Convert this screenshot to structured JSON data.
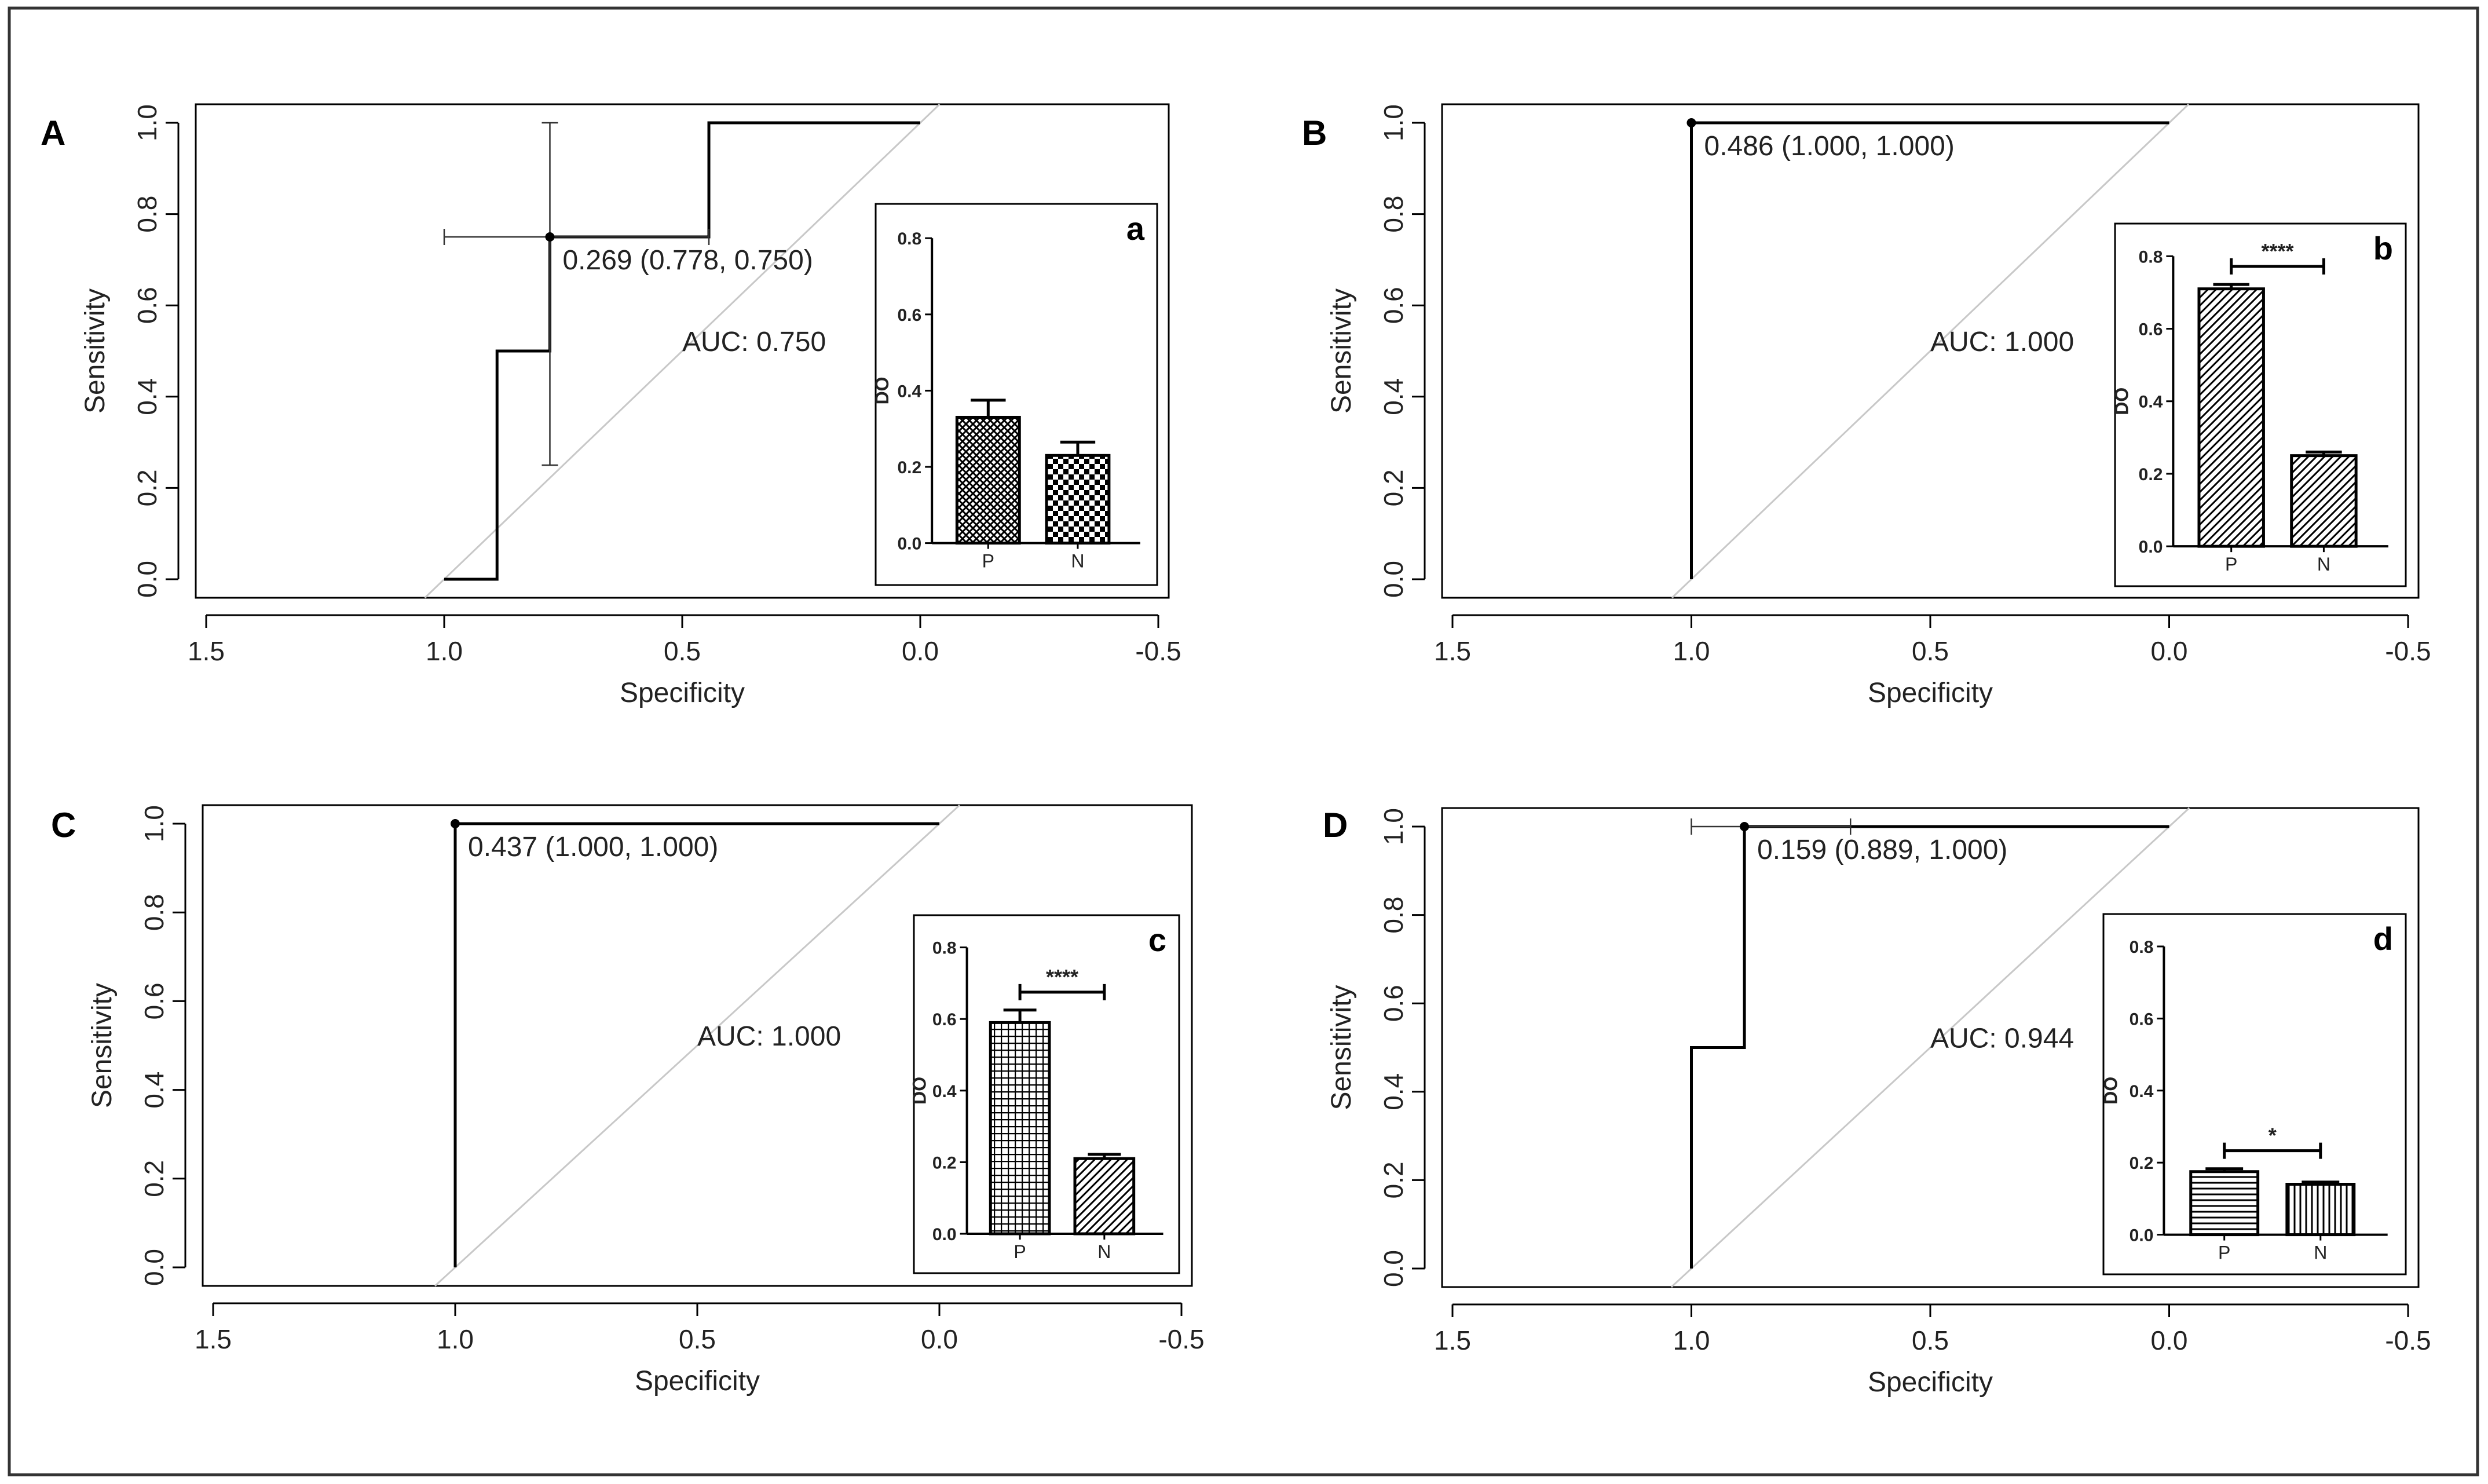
{
  "figure": {
    "frame_color": "#333333",
    "line_color": "#000000",
    "diagonal_color": "#c8c8c8"
  },
  "chart_data": [
    {
      "id": "A",
      "type": "line",
      "panel_label": "A",
      "xlabel": "Specificity",
      "ylabel": "Sensitivity",
      "xlim": [
        1.5,
        -0.5
      ],
      "ylim": [
        0,
        1
      ],
      "xticks": [
        1.5,
        1.0,
        0.5,
        0.0,
        -0.5
      ],
      "xtick_labels": [
        "1.5",
        "1.0",
        "0.5",
        "0.0",
        "-0.5"
      ],
      "yticks": [
        0,
        0.2,
        0.4,
        0.6,
        0.8,
        1.0
      ],
      "ytick_labels": [
        "0.0",
        "0.2",
        "0.4",
        "0.6",
        "0.8",
        "1.0"
      ],
      "roc_curve": {
        "specificity": [
          1.0,
          0.889,
          0.889,
          0.778,
          0.778,
          0.444,
          0.444,
          0.0
        ],
        "sensitivity": [
          0.0,
          0.0,
          0.5,
          0.5,
          0.75,
          0.75,
          1.0,
          1.0
        ]
      },
      "best_threshold": {
        "specificity": 0.778,
        "sensitivity": 0.75,
        "label": "0.269 (0.778, 0.750)",
        "ci_x": [
          1.0,
          0.444
        ],
        "ci_y": [
          0.25,
          1.0
        ]
      },
      "auc_label": "AUC: 0.750",
      "inset": {
        "label": "a",
        "ylabel": "DO",
        "ylim": [
          0,
          0.8
        ],
        "yticks": [
          0,
          0.2,
          0.4,
          0.6,
          0.8
        ],
        "ytick_labels": [
          "0.0",
          "0.2",
          "0.4",
          "0.6",
          "0.8"
        ],
        "categories": [
          "P",
          "N"
        ],
        "values": [
          0.33,
          0.23
        ],
        "errors": [
          0.045,
          0.035
        ],
        "patterns": [
          "crosshatch",
          "checker"
        ],
        "significance": ""
      }
    },
    {
      "id": "B",
      "type": "line",
      "panel_label": "B",
      "xlabel": "Specificity",
      "ylabel": "Sensitivity",
      "xlim": [
        1.5,
        -0.5
      ],
      "ylim": [
        0,
        1
      ],
      "xticks": [
        1.5,
        1.0,
        0.5,
        0.0,
        -0.5
      ],
      "xtick_labels": [
        "1.5",
        "1.0",
        "0.5",
        "0.0",
        "-0.5"
      ],
      "yticks": [
        0,
        0.2,
        0.4,
        0.6,
        0.8,
        1.0
      ],
      "ytick_labels": [
        "0.0",
        "0.2",
        "0.4",
        "0.6",
        "0.8",
        "1.0"
      ],
      "roc_curve": {
        "specificity": [
          1.0,
          1.0,
          0.0
        ],
        "sensitivity": [
          0.0,
          1.0,
          1.0
        ]
      },
      "best_threshold": {
        "specificity": 1.0,
        "sensitivity": 1.0,
        "label": "0.486 (1.000, 1.000)",
        "ci_x": null,
        "ci_y": null
      },
      "auc_label": "AUC: 1.000",
      "inset": {
        "label": "b",
        "ylabel": "DO",
        "ylim": [
          0,
          0.8
        ],
        "yticks": [
          0,
          0.2,
          0.4,
          0.6,
          0.8
        ],
        "ytick_labels": [
          "0.0",
          "0.2",
          "0.4",
          "0.6",
          "0.8"
        ],
        "categories": [
          "P",
          "N"
        ],
        "values": [
          0.71,
          0.25
        ],
        "errors": [
          0.012,
          0.01
        ],
        "patterns": [
          "diagonal",
          "diagonal"
        ],
        "significance": "****"
      }
    },
    {
      "id": "C",
      "type": "line",
      "panel_label": "C",
      "xlabel": "Specificity",
      "ylabel": "Sensitivity",
      "xlim": [
        1.5,
        -0.5
      ],
      "ylim": [
        0,
        1
      ],
      "xticks": [
        1.5,
        1.0,
        0.5,
        0.0,
        -0.5
      ],
      "xtick_labels": [
        "1.5",
        "1.0",
        "0.5",
        "0.0",
        "-0.5"
      ],
      "yticks": [
        0,
        0.2,
        0.4,
        0.6,
        0.8,
        1.0
      ],
      "ytick_labels": [
        "0.0",
        "0.2",
        "0.4",
        "0.6",
        "0.8",
        "1.0"
      ],
      "roc_curve": {
        "specificity": [
          1.0,
          1.0,
          0.0
        ],
        "sensitivity": [
          0.0,
          1.0,
          1.0
        ]
      },
      "best_threshold": {
        "specificity": 1.0,
        "sensitivity": 1.0,
        "label": "0.437 (1.000, 1.000)",
        "ci_x": null,
        "ci_y": null
      },
      "auc_label": "AUC: 1.000",
      "inset": {
        "label": "c",
        "ylabel": "DO",
        "ylim": [
          0,
          0.8
        ],
        "yticks": [
          0,
          0.2,
          0.4,
          0.6,
          0.8
        ],
        "ytick_labels": [
          "0.0",
          "0.2",
          "0.4",
          "0.6",
          "0.8"
        ],
        "categories": [
          "P",
          "N"
        ],
        "values": [
          0.59,
          0.21
        ],
        "errors": [
          0.035,
          0.012
        ],
        "patterns": [
          "grid",
          "diagonal"
        ],
        "significance": "****"
      }
    },
    {
      "id": "D",
      "type": "line",
      "panel_label": "D",
      "xlabel": "Specificity",
      "ylabel": "Sensitivity",
      "xlim": [
        1.5,
        -0.5
      ],
      "ylim": [
        0,
        1
      ],
      "xticks": [
        1.5,
        1.0,
        0.5,
        0.0,
        -0.5
      ],
      "xtick_labels": [
        "1.5",
        "1.0",
        "0.5",
        "0.0",
        "-0.5"
      ],
      "yticks": [
        0,
        0.2,
        0.4,
        0.6,
        0.8,
        1.0
      ],
      "ytick_labels": [
        "0.0",
        "0.2",
        "0.4",
        "0.6",
        "0.8",
        "1.0"
      ],
      "roc_curve": {
        "specificity": [
          1.0,
          1.0,
          0.889,
          0.889,
          0.0
        ],
        "sensitivity": [
          0.0,
          0.5,
          0.5,
          1.0,
          1.0
        ]
      },
      "best_threshold": {
        "specificity": 0.889,
        "sensitivity": 1.0,
        "label": "0.159 (0.889, 1.000)",
        "ci_x": [
          1.0,
          0.667
        ],
        "ci_y": null
      },
      "auc_label": "AUC: 0.944",
      "inset": {
        "label": "d",
        "ylabel": "DO",
        "ylim": [
          0,
          0.8
        ],
        "yticks": [
          0,
          0.2,
          0.4,
          0.6,
          0.8
        ],
        "ytick_labels": [
          "0.0",
          "0.2",
          "0.4",
          "0.6",
          "0.8"
        ],
        "categories": [
          "P",
          "N"
        ],
        "values": [
          0.175,
          0.14
        ],
        "errors": [
          0.008,
          0.006
        ],
        "patterns": [
          "horizontal",
          "vertical"
        ],
        "significance": "*"
      }
    }
  ]
}
